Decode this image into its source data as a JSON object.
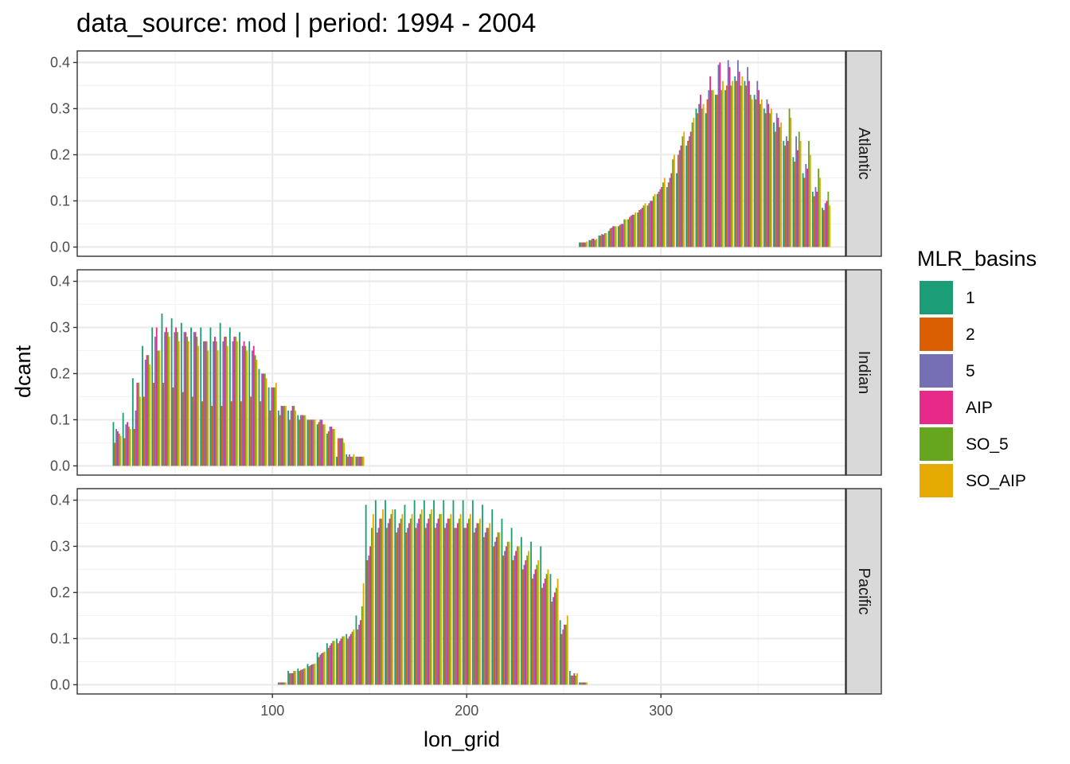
{
  "chart_data": {
    "type": "bar",
    "title": "data_source: mod | period: 1994 - 2004",
    "xlabel": "lon_grid",
    "ylabel": "dcant",
    "xlim": [
      -0.5,
      395
    ],
    "ylim": [
      -0.02,
      0.425
    ],
    "x_ticks": [
      100,
      200,
      300
    ],
    "y_ticks": [
      0.0,
      0.1,
      0.2,
      0.3,
      0.4
    ],
    "y_tick_labels": [
      "0.0",
      "0.1",
      "0.2",
      "0.3",
      "0.4"
    ],
    "grid": true,
    "legend": {
      "title": "MLR_basins",
      "position": "right",
      "entries": [
        "1",
        "2",
        "5",
        "AIP",
        "SO_5",
        "SO_AIP"
      ],
      "colors": [
        "#1b9e77",
        "#d95f02",
        "#7570b3",
        "#e7298a",
        "#66a61e",
        "#e6ab02"
      ]
    },
    "panels": [
      {
        "name": "Atlantic",
        "x_start": 260,
        "x_step": 5,
        "series": [
          {
            "name": "1",
            "values": [
              0.01,
              0.015,
              0.025,
              0.035,
              0.045,
              0.06,
              0.075,
              0.09,
              0.115,
              0.13,
              0.16,
              0.22,
              0.3,
              0.29,
              0.33,
              0.34,
              0.37,
              0.36,
              0.33,
              0.3,
              0.27,
              0.23,
              0.195,
              0.16,
              0.12,
              0.085
            ]
          },
          {
            "name": "2",
            "values": [
              0.01,
              0.015,
              0.025,
              0.04,
              0.048,
              0.065,
              0.08,
              0.095,
              0.12,
              0.14,
              0.2,
              0.23,
              0.29,
              0.32,
              0.33,
              0.35,
              0.36,
              0.35,
              0.32,
              0.29,
              0.25,
              0.22,
              0.185,
              0.15,
              0.11,
              0.08
            ]
          },
          {
            "name": "5",
            "values": [
              0.01,
              0.018,
              0.028,
              0.042,
              0.05,
              0.068,
              0.082,
              0.1,
              0.125,
              0.15,
              0.21,
              0.24,
              0.31,
              0.34,
              0.395,
              0.405,
              0.405,
              0.39,
              0.36,
              0.32,
              0.29,
              0.24,
              0.24,
              0.18,
              0.13,
              0.095
            ]
          },
          {
            "name": "AIP",
            "values": [
              0.01,
              0.018,
              0.027,
              0.045,
              0.05,
              0.07,
              0.085,
              0.1,
              0.13,
              0.16,
              0.22,
              0.25,
              0.33,
              0.37,
              0.4,
              0.39,
              0.38,
              0.36,
              0.34,
              0.31,
              0.28,
              0.23,
              0.21,
              0.17,
              0.12,
              0.1
            ]
          },
          {
            "name": "SO_5",
            "values": [
              0.01,
              0.015,
              0.03,
              0.045,
              0.06,
              0.07,
              0.09,
              0.11,
              0.14,
              0.19,
              0.24,
              0.27,
              0.3,
              0.34,
              0.34,
              0.35,
              0.35,
              0.33,
              0.31,
              0.29,
              0.26,
              0.3,
              0.25,
              0.23,
              0.17,
              0.12
            ]
          },
          {
            "name": "SO_AIP",
            "values": [
              0.012,
              0.018,
              0.03,
              0.045,
              0.06,
              0.075,
              0.095,
              0.115,
              0.15,
              0.2,
              0.25,
              0.28,
              0.31,
              0.34,
              0.36,
              0.36,
              0.37,
              0.32,
              0.32,
              0.3,
              0.27,
              0.28,
              0.23,
              0.2,
              0.15,
              0.09
            ]
          }
        ]
      },
      {
        "name": "Indian",
        "x_start": 20,
        "x_step": 5,
        "series": [
          {
            "name": "1",
            "values": [
              0.095,
              0.115,
              0.19,
              0.26,
              0.3,
              0.33,
              0.32,
              0.31,
              0.3,
              0.3,
              0.3,
              0.31,
              0.3,
              0.29,
              0.27,
              0.21,
              0.17,
              0.12,
              0.12,
              0.11,
              0.1,
              0.09,
              0.07,
              0.02,
              0.025,
              0.02
            ]
          },
          {
            "name": "2",
            "values": [
              0.05,
              0.06,
              0.08,
              0.15,
              0.18,
              0.18,
              0.17,
              0.16,
              0.15,
              0.14,
              0.13,
              0.13,
              0.14,
              0.14,
              0.15,
              0.14,
              0.12,
              0.11,
              0.1,
              0.1,
              0.1,
              0.095,
              0.075,
              0.06,
              0.02,
              0.02
            ]
          },
          {
            "name": "5",
            "values": [
              0.08,
              0.09,
              0.12,
              0.23,
              0.28,
              0.29,
              0.29,
              0.29,
              0.29,
              0.27,
              0.27,
              0.27,
              0.27,
              0.26,
              0.25,
              0.2,
              0.17,
              0.13,
              0.12,
              0.11,
              0.1,
              0.1,
              0.085,
              0.06,
              0.025,
              0.02
            ]
          },
          {
            "name": "AIP",
            "values": [
              0.075,
              0.095,
              0.18,
              0.24,
              0.3,
              0.3,
              0.3,
              0.29,
              0.29,
              0.27,
              0.28,
              0.28,
              0.28,
              0.27,
              0.26,
              0.2,
              0.17,
              0.13,
              0.13,
              0.11,
              0.1,
              0.1,
              0.085,
              0.06,
              0.02,
              0.02
            ]
          },
          {
            "name": "SO_5",
            "values": [
              0.07,
              0.085,
              0.18,
              0.24,
              0.25,
              0.29,
              0.29,
              0.28,
              0.28,
              0.27,
              0.27,
              0.28,
              0.28,
              0.26,
              0.24,
              0.2,
              0.17,
              0.13,
              0.13,
              0.11,
              0.1,
              0.09,
              0.08,
              0.06,
              0.02,
              0.02
            ]
          },
          {
            "name": "SO_AIP",
            "values": [
              0.065,
              0.08,
              0.15,
              0.22,
              0.25,
              0.28,
              0.27,
              0.27,
              0.26,
              0.25,
              0.25,
              0.26,
              0.27,
              0.25,
              0.23,
              0.19,
              0.18,
              0.13,
              0.12,
              0.11,
              0.1,
              0.09,
              0.08,
              0.05,
              0.025,
              0.02
            ]
          }
        ]
      },
      {
        "name": "Pacific",
        "x_start": 105,
        "x_step": 5,
        "series": [
          {
            "name": "1",
            "values": [
              0.005,
              0.03,
              0.035,
              0.045,
              0.07,
              0.09,
              0.1,
              0.11,
              0.15,
              0.39,
              0.4,
              0.4,
              0.38,
              0.39,
              0.4,
              0.4,
              0.4,
              0.4,
              0.4,
              0.4,
              0.4,
              0.39,
              0.38,
              0.36,
              0.34,
              0.32,
              0.31,
              0.3,
              0.24,
              0.14,
              0.03,
              0.005
            ]
          },
          {
            "name": "2",
            "values": [
              0.005,
              0.025,
              0.03,
              0.04,
              0.06,
              0.08,
              0.09,
              0.1,
              0.12,
              0.27,
              0.33,
              0.34,
              0.33,
              0.33,
              0.34,
              0.34,
              0.34,
              0.34,
              0.34,
              0.34,
              0.33,
              0.32,
              0.3,
              0.28,
              0.27,
              0.25,
              0.23,
              0.21,
              0.18,
              0.11,
              0.02,
              0.005
            ]
          },
          {
            "name": "5",
            "values": [
              0.005,
              0.025,
              0.032,
              0.042,
              0.065,
              0.085,
              0.095,
              0.105,
              0.13,
              0.28,
              0.34,
              0.35,
              0.34,
              0.34,
              0.35,
              0.35,
              0.35,
              0.35,
              0.34,
              0.34,
              0.34,
              0.33,
              0.31,
              0.29,
              0.28,
              0.26,
              0.24,
              0.22,
              0.19,
              0.12,
              0.02,
              0.005
            ]
          },
          {
            "name": "AIP",
            "values": [
              0.005,
              0.025,
              0.033,
              0.044,
              0.068,
              0.09,
              0.1,
              0.11,
              0.14,
              0.3,
              0.36,
              0.36,
              0.35,
              0.35,
              0.36,
              0.36,
              0.36,
              0.36,
              0.35,
              0.35,
              0.35,
              0.34,
              0.32,
              0.3,
              0.29,
              0.27,
              0.25,
              0.23,
              0.2,
              0.13,
              0.025,
              0.005
            ]
          },
          {
            "name": "SO_5",
            "values": [
              0.005,
              0.03,
              0.035,
              0.045,
              0.07,
              0.095,
              0.105,
              0.115,
              0.17,
              0.34,
              0.36,
              0.37,
              0.36,
              0.36,
              0.37,
              0.37,
              0.37,
              0.36,
              0.36,
              0.36,
              0.35,
              0.34,
              0.33,
              0.31,
              0.3,
              0.28,
              0.26,
              0.24,
              0.21,
              0.13,
              0.02,
              0.005
            ]
          },
          {
            "name": "SO_AIP",
            "values": [
              0.005,
              0.03,
              0.036,
              0.046,
              0.072,
              0.095,
              0.105,
              0.12,
              0.22,
              0.37,
              0.38,
              0.38,
              0.37,
              0.37,
              0.38,
              0.38,
              0.37,
              0.37,
              0.37,
              0.37,
              0.36,
              0.35,
              0.33,
              0.31,
              0.3,
              0.29,
              0.27,
              0.25,
              0.23,
              0.15,
              0.025,
              0.005
            ]
          }
        ]
      }
    ]
  }
}
